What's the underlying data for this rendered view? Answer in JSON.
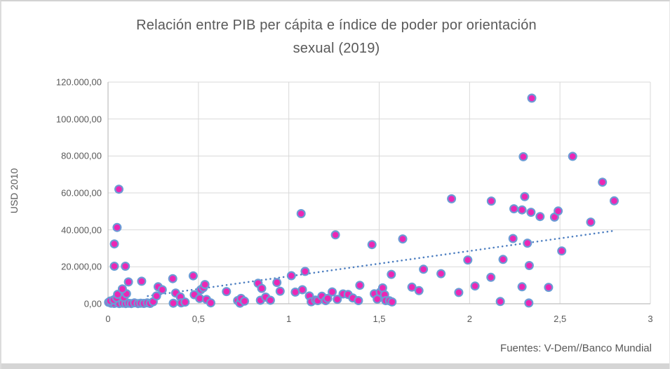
{
  "window": {
    "source_caption": "Fuentes: V-Dem//Banco Mundial"
  },
  "chart_data": {
    "type": "scatter",
    "title": "Relación entre PIB per cápita e índice de poder por orientación sexual (2019)",
    "title_lines": {
      "line1": "Relación entre PIB per cápita e índice de poder por orientación",
      "line2": "sexual (2019)"
    },
    "xlabel": "",
    "ylabel": "USD 2010",
    "xlim": [
      0,
      3
    ],
    "ylim": [
      0,
      120000
    ],
    "grid": true,
    "legend": "none",
    "grid_color": "#d9d9d9",
    "axis_color": "#bfbfbf",
    "text_color": "#595959",
    "x_ticks": [
      {
        "label": "0",
        "value": 0
      },
      {
        "label": "0,5",
        "value": 0.5
      },
      {
        "label": "1",
        "value": 1
      },
      {
        "label": "1,5",
        "value": 1.5
      },
      {
        "label": "2",
        "value": 2
      },
      {
        "label": "2,5",
        "value": 2.5
      },
      {
        "label": "3",
        "value": 3
      }
    ],
    "y_ticks": [
      {
        "label": "0,00",
        "value": 0
      },
      {
        "label": "20.000,00",
        "value": 20000
      },
      {
        "label": "40.000,00",
        "value": 40000
      },
      {
        "label": "60.000,00",
        "value": 60000
      },
      {
        "label": "80.000,00",
        "value": 80000
      },
      {
        "label": "100.000,00",
        "value": 100000
      },
      {
        "label": "120.000,00",
        "value": 120000
      }
    ],
    "marker": {
      "fill": "#eb27b4",
      "stroke": "#6b9bd5",
      "radius": 5.4,
      "stroke_width": 2.2
    },
    "trendline": {
      "type": "linear",
      "style": "dotted",
      "color": "#4e7fc1",
      "slope": 13700,
      "intercept": 1160,
      "x_start": 0.22,
      "x_end": 2.8
    },
    "points": [
      [
        0.003,
        800
      ],
      [
        0.017,
        300
      ],
      [
        0.034,
        200
      ],
      [
        0.052,
        900
      ],
      [
        0.062,
        100
      ],
      [
        0.082,
        300
      ],
      [
        0.098,
        100
      ],
      [
        0.114,
        300
      ],
      [
        0.129,
        100
      ],
      [
        0.146,
        500
      ],
      [
        0.166,
        100
      ],
      [
        0.181,
        300
      ],
      [
        0.198,
        200
      ],
      [
        0.217,
        500
      ],
      [
        0.233,
        200
      ],
      [
        0.25,
        1100
      ],
      [
        0.012,
        1500
      ],
      [
        0.031,
        2100
      ],
      [
        0.047,
        3200
      ],
      [
        0.087,
        3400
      ],
      [
        0.053,
        5100
      ],
      [
        0.102,
        5400
      ],
      [
        0.079,
        8000
      ],
      [
        0.113,
        11800
      ],
      [
        0.186,
        12200
      ],
      [
        0.035,
        20300
      ],
      [
        0.096,
        20300
      ],
      [
        0.035,
        32400
      ],
      [
        0.05,
        41300
      ],
      [
        0.06,
        62000
      ],
      [
        0.268,
        4200
      ],
      [
        0.277,
        9200
      ],
      [
        0.3,
        7600
      ],
      [
        0.358,
        13600
      ],
      [
        0.374,
        5800
      ],
      [
        0.4,
        3700
      ],
      [
        0.361,
        300
      ],
      [
        0.405,
        500
      ],
      [
        0.426,
        900
      ],
      [
        0.471,
        15100
      ],
      [
        0.477,
        4900
      ],
      [
        0.507,
        2900
      ],
      [
        0.513,
        7600
      ],
      [
        0.527,
        8700
      ],
      [
        0.536,
        10400
      ],
      [
        0.545,
        2300
      ],
      [
        0.568,
        500
      ],
      [
        0.655,
        6600
      ],
      [
        0.717,
        1700
      ],
      [
        0.73,
        300
      ],
      [
        0.736,
        2900
      ],
      [
        0.755,
        1400
      ],
      [
        0.83,
        11100
      ],
      [
        0.85,
        8300
      ],
      [
        0.843,
        1900
      ],
      [
        0.872,
        3600
      ],
      [
        0.898,
        1900
      ],
      [
        0.934,
        11500
      ],
      [
        0.952,
        6800
      ],
      [
        1.014,
        15200
      ],
      [
        1.036,
        6300
      ],
      [
        1.068,
        48800
      ],
      [
        1.075,
        7600
      ],
      [
        1.09,
        17500
      ],
      [
        1.114,
        4200
      ],
      [
        1.124,
        1100
      ],
      [
        1.148,
        2000
      ],
      [
        1.16,
        1700
      ],
      [
        1.183,
        4100
      ],
      [
        1.204,
        1700
      ],
      [
        1.215,
        2900
      ],
      [
        1.24,
        6400
      ],
      [
        1.258,
        37300
      ],
      [
        1.268,
        2400
      ],
      [
        1.3,
        5300
      ],
      [
        1.328,
        5000
      ],
      [
        1.354,
        3100
      ],
      [
        1.385,
        1700
      ],
      [
        1.393,
        10000
      ],
      [
        1.46,
        32000
      ],
      [
        1.473,
        5400
      ],
      [
        1.489,
        2500
      ],
      [
        1.506,
        6300
      ],
      [
        1.519,
        8600
      ],
      [
        1.53,
        4900
      ],
      [
        1.536,
        1700
      ],
      [
        1.557,
        1600
      ],
      [
        1.571,
        1000
      ],
      [
        1.567,
        15900
      ],
      [
        1.63,
        35100
      ],
      [
        1.681,
        9000
      ],
      [
        1.72,
        7100
      ],
      [
        1.745,
        18700
      ],
      [
        1.842,
        16300
      ],
      [
        1.9,
        56800
      ],
      [
        1.94,
        6100
      ],
      [
        1.99,
        23700
      ],
      [
        2.03,
        9600
      ],
      [
        2.118,
        14300
      ],
      [
        2.12,
        55600
      ],
      [
        2.17,
        1200
      ],
      [
        2.185,
        24000
      ],
      [
        2.24,
        35300
      ],
      [
        2.245,
        51400
      ],
      [
        2.29,
        50800
      ],
      [
        2.29,
        9200
      ],
      [
        2.297,
        79600
      ],
      [
        2.305,
        58000
      ],
      [
        2.32,
        32800
      ],
      [
        2.33,
        20700
      ],
      [
        2.328,
        400
      ],
      [
        2.344,
        111300
      ],
      [
        2.34,
        49500
      ],
      [
        2.39,
        47200
      ],
      [
        2.437,
        8900
      ],
      [
        2.47,
        46900
      ],
      [
        2.49,
        50200
      ],
      [
        2.51,
        28600
      ],
      [
        2.57,
        79800
      ],
      [
        2.67,
        44200
      ],
      [
        2.735,
        65800
      ],
      [
        2.8,
        55700
      ]
    ]
  }
}
